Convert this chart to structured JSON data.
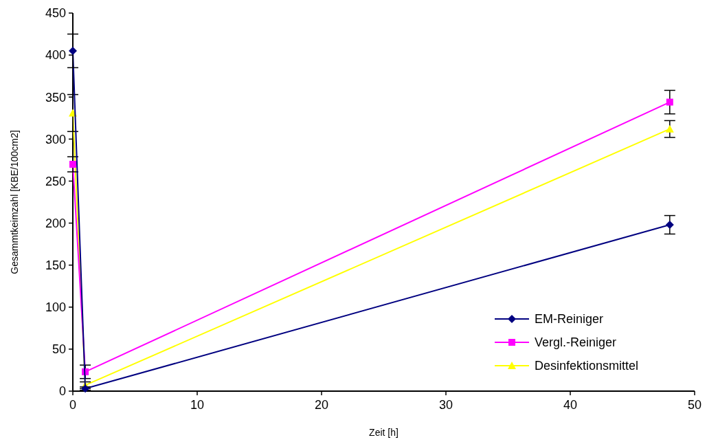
{
  "chart_data": {
    "type": "line",
    "xlabel": "Zeit [h]",
    "ylabel": "Gesammtkeimzahl [KBE/100cm2]",
    "x": [
      0,
      1,
      48
    ],
    "xlim": [
      0,
      50
    ],
    "xticks": [
      0,
      10,
      20,
      30,
      40,
      50
    ],
    "ylim": [
      0,
      450
    ],
    "yticks": [
      0,
      50,
      100,
      150,
      200,
      250,
      300,
      350,
      400,
      450
    ],
    "grid": false,
    "legend": "bottom right",
    "series": [
      {
        "name": "EM-Reiniger",
        "color": "#000080",
        "marker": "diamond",
        "values": [
          405,
          3,
          198
        ],
        "errors": [
          20,
          2,
          11
        ]
      },
      {
        "name": "Vergl.-Reiniger",
        "color": "#ff00ff",
        "marker": "square",
        "values": [
          270,
          23,
          344
        ],
        "errors": [
          9,
          8,
          14
        ]
      },
      {
        "name": "Desinfektionsmittel",
        "color": "#ffff00",
        "marker": "triangle",
        "values": [
          331,
          7,
          312
        ],
        "errors": [
          22,
          4,
          10
        ]
      }
    ]
  }
}
